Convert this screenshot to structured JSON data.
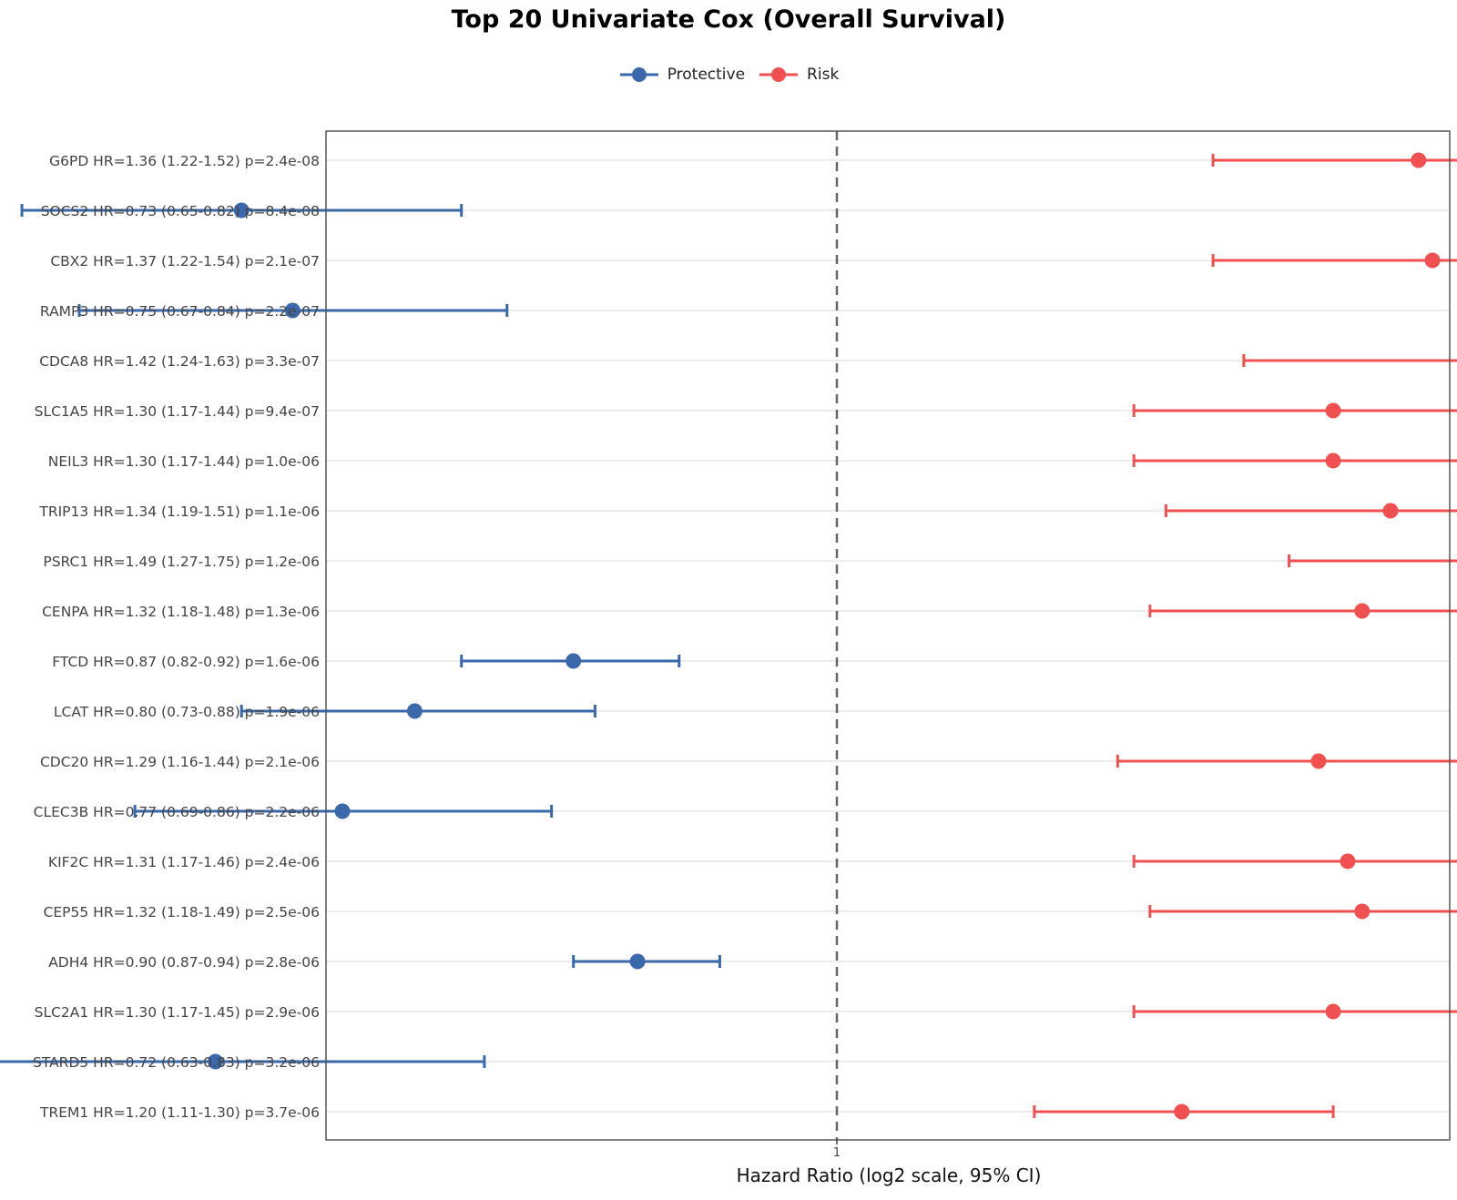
{
  "chart_data": {
    "type": "forest",
    "title": "Top 20 Univariate Cox (Overall Survival)",
    "xlabel": "Hazard Ratio (log2 scale, 95% CI)",
    "x_scale": "log2",
    "reference_line": 1,
    "x_ticks": [
      "1"
    ],
    "legend_placement": "top",
    "legend": [
      {
        "name": "Protective",
        "color": "#3a68aa"
      },
      {
        "name": "Risk",
        "color": "#f05050"
      }
    ],
    "rows": [
      {
        "label": "G6PD  HR=1.36 (1.22-1.52)  p=2.4e-08",
        "hr": 1.36,
        "lo": 1.22,
        "hi": 1.52,
        "group": "Risk"
      },
      {
        "label": "SOCS2  HR=0.73 (0.65-0.82)  p=8.4e-08",
        "hr": 0.73,
        "lo": 0.65,
        "hi": 0.82,
        "group": "Protective"
      },
      {
        "label": "CBX2  HR=1.37 (1.22-1.54)  p=2.1e-07",
        "hr": 1.37,
        "lo": 1.22,
        "hi": 1.54,
        "group": "Risk"
      },
      {
        "label": "RAMP3  HR=0.75 (0.67-0.84)  p=2.2e-07",
        "hr": 0.75,
        "lo": 0.67,
        "hi": 0.84,
        "group": "Protective"
      },
      {
        "label": "CDCA8  HR=1.42 (1.24-1.63)  p=3.3e-07",
        "hr": 1.42,
        "lo": 1.24,
        "hi": 1.63,
        "group": "Risk"
      },
      {
        "label": "SLC1A5  HR=1.30 (1.17-1.44)  p=9.4e-07",
        "hr": 1.3,
        "lo": 1.17,
        "hi": 1.44,
        "group": "Risk"
      },
      {
        "label": "NEIL3  HR=1.30 (1.17-1.44)  p=1.0e-06",
        "hr": 1.3,
        "lo": 1.17,
        "hi": 1.44,
        "group": "Risk"
      },
      {
        "label": "TRIP13  HR=1.34 (1.19-1.51)  p=1.1e-06",
        "hr": 1.34,
        "lo": 1.19,
        "hi": 1.51,
        "group": "Risk"
      },
      {
        "label": "PSRC1  HR=1.49 (1.27-1.75)  p=1.2e-06",
        "hr": 1.49,
        "lo": 1.27,
        "hi": 1.75,
        "group": "Risk"
      },
      {
        "label": "CENPA  HR=1.32 (1.18-1.48)  p=1.3e-06",
        "hr": 1.32,
        "lo": 1.18,
        "hi": 1.48,
        "group": "Risk"
      },
      {
        "label": "FTCD  HR=0.87 (0.82-0.92)  p=1.6e-06",
        "hr": 0.87,
        "lo": 0.82,
        "hi": 0.92,
        "group": "Protective"
      },
      {
        "label": "LCAT  HR=0.80 (0.73-0.88)  p=1.9e-06",
        "hr": 0.8,
        "lo": 0.73,
        "hi": 0.88,
        "group": "Protective"
      },
      {
        "label": "CDC20  HR=1.29 (1.16-1.44)  p=2.1e-06",
        "hr": 1.29,
        "lo": 1.16,
        "hi": 1.44,
        "group": "Risk"
      },
      {
        "label": "CLEC3B  HR=0.77 (0.69-0.86)  p=2.2e-06",
        "hr": 0.77,
        "lo": 0.69,
        "hi": 0.86,
        "group": "Protective"
      },
      {
        "label": "KIF2C  HR=1.31 (1.17-1.46)  p=2.4e-06",
        "hr": 1.31,
        "lo": 1.17,
        "hi": 1.46,
        "group": "Risk"
      },
      {
        "label": "CEP55  HR=1.32 (1.18-1.49)  p=2.5e-06",
        "hr": 1.32,
        "lo": 1.18,
        "hi": 1.49,
        "group": "Risk"
      },
      {
        "label": "ADH4  HR=0.90 (0.87-0.94)  p=2.8e-06",
        "hr": 0.9,
        "lo": 0.87,
        "hi": 0.94,
        "group": "Protective"
      },
      {
        "label": "SLC2A1  HR=1.30 (1.17-1.45)  p=2.9e-06",
        "hr": 1.3,
        "lo": 1.17,
        "hi": 1.45,
        "group": "Risk"
      },
      {
        "label": "STARD5  HR=0.72 (0.63-0.83)  p=3.2e-06",
        "hr": 0.72,
        "lo": 0.63,
        "hi": 0.83,
        "group": "Protective"
      },
      {
        "label": "TREM1  HR=1.20 (1.11-1.30)  p=3.7e-06",
        "hr": 1.2,
        "lo": 1.11,
        "hi": 1.3,
        "group": "Risk"
      }
    ]
  }
}
